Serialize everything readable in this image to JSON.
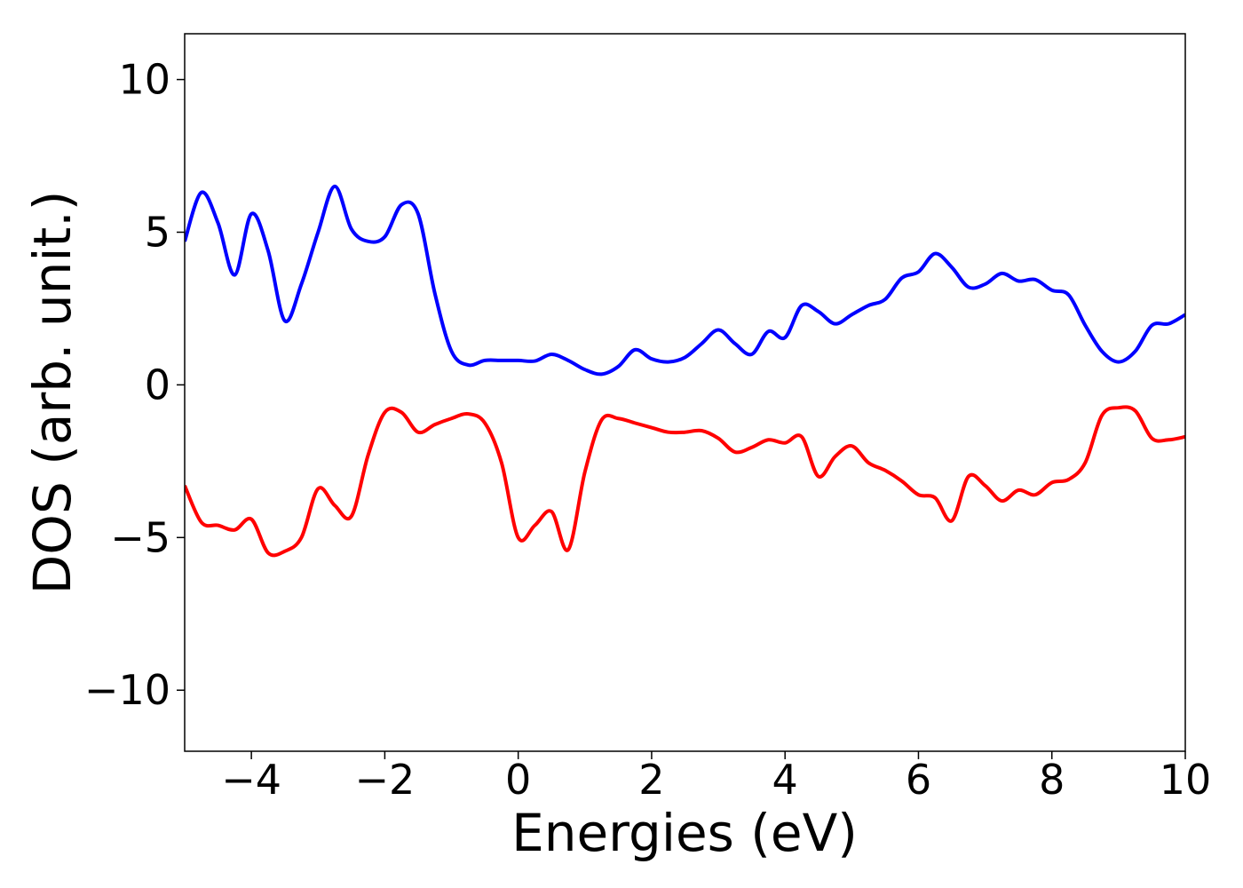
{
  "chart_data": {
    "type": "line",
    "x_label": "Energies (eV)",
    "y_label": "DOS (arb. unit.)",
    "x": [
      -5,
      -4.75,
      -4.5,
      -4.25,
      -4,
      -3.75,
      -3.5,
      -3.25,
      -3,
      -2.75,
      -2.5,
      -2.25,
      -2,
      -1.75,
      -1.5,
      -1.25,
      -1,
      -0.75,
      -0.5,
      -0.25,
      0,
      0.25,
      0.5,
      0.75,
      1,
      1.25,
      1.5,
      1.75,
      2,
      2.25,
      2.5,
      2.75,
      3,
      3.25,
      3.5,
      3.75,
      4,
      4.25,
      4.5,
      4.75,
      5,
      5.25,
      5.5,
      5.75,
      6,
      6.25,
      6.5,
      6.75,
      7,
      7.25,
      7.5,
      7.75,
      8,
      8.25,
      8.5,
      8.75,
      9,
      9.25,
      9.5,
      9.75,
      10
    ],
    "series": [
      {
        "color": "#0000ff",
        "values": [
          4.7,
          6.3,
          5.3,
          3.6,
          5.6,
          4.4,
          2.1,
          3.3,
          5.0,
          6.5,
          5.1,
          4.7,
          4.85,
          5.9,
          5.6,
          3.0,
          1.1,
          0.65,
          0.8,
          0.8,
          0.8,
          0.78,
          1.0,
          0.8,
          0.5,
          0.35,
          0.6,
          1.15,
          0.85,
          0.75,
          0.9,
          1.35,
          1.8,
          1.35,
          1.0,
          1.75,
          1.55,
          2.6,
          2.4,
          2.0,
          2.3,
          2.6,
          2.8,
          3.5,
          3.7,
          4.3,
          3.85,
          3.2,
          3.3,
          3.65,
          3.4,
          3.45,
          3.1,
          2.95,
          1.95,
          1.1,
          0.75,
          1.1,
          1.95,
          2.0,
          2.3
        ]
      },
      {
        "color": "#ff0000",
        "values": [
          -3.3,
          -4.5,
          -4.6,
          -4.75,
          -4.4,
          -5.5,
          -5.45,
          -5.0,
          -3.4,
          -3.95,
          -4.3,
          -2.3,
          -0.9,
          -0.9,
          -1.55,
          -1.3,
          -1.1,
          -0.95,
          -1.25,
          -2.55,
          -5.0,
          -4.6,
          -4.15,
          -5.4,
          -2.85,
          -1.15,
          -1.1,
          -1.25,
          -1.4,
          -1.55,
          -1.55,
          -1.5,
          -1.75,
          -2.2,
          -2.05,
          -1.8,
          -1.9,
          -1.7,
          -3.0,
          -2.35,
          -2.0,
          -2.55,
          -2.8,
          -3.15,
          -3.6,
          -3.7,
          -4.45,
          -3.0,
          -3.3,
          -3.8,
          -3.45,
          -3.6,
          -3.2,
          -3.1,
          -2.55,
          -1.0,
          -0.75,
          -0.85,
          -1.75,
          -1.8,
          -1.7
        ]
      }
    ],
    "xlim": [
      -5,
      10
    ],
    "xticks": [
      {
        "value": -4,
        "label": "−4"
      },
      {
        "value": -2,
        "label": "−2"
      },
      0,
      2,
      4,
      6,
      8,
      10
    ],
    "ylim": [
      -12,
      11.5
    ],
    "yticks": [
      {
        "value": -10,
        "label": "−10"
      },
      {
        "value": -5,
        "label": "−5"
      },
      0,
      5,
      10
    ],
    "grid": false
  }
}
